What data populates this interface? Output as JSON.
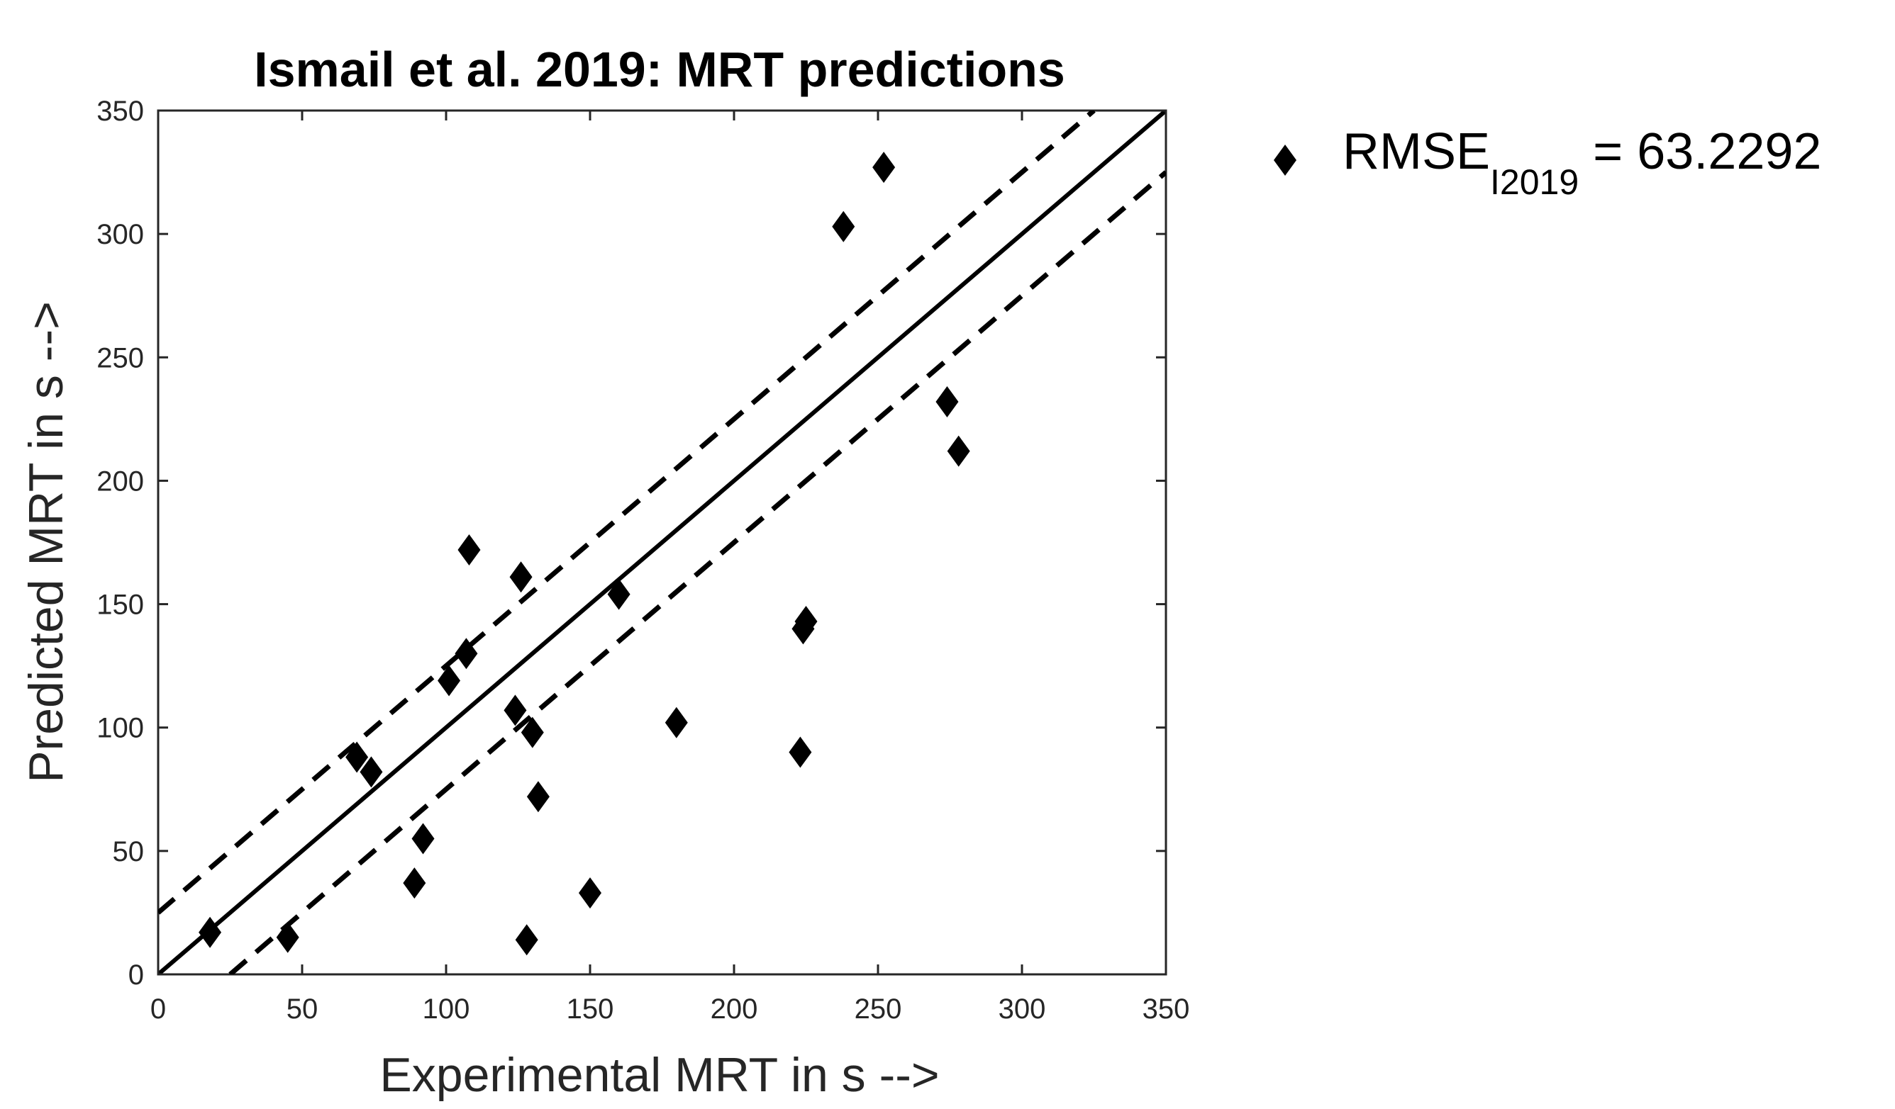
{
  "chart_data": {
    "type": "scatter",
    "title": "Ismail et al. 2019: MRT predictions",
    "xlabel": "Experimental MRT in s -->",
    "ylabel": "Predicted MRT in s -->",
    "xlim": [
      0,
      350
    ],
    "ylim": [
      0,
      350
    ],
    "xticks": [
      "0",
      "50",
      "100",
      "150",
      "200",
      "250",
      "300",
      "350"
    ],
    "yticks": [
      "0",
      "50",
      "100",
      "150",
      "200",
      "250",
      "300",
      "350"
    ],
    "grid": false,
    "legend_position": "outside-top-right",
    "legend": {
      "marker": "diamond",
      "label_main": "RMSE",
      "label_subscript": "I2019",
      "label_value": " = 63.2292"
    },
    "reference_lines": [
      {
        "name": "identity",
        "style": "solid",
        "points": [
          [
            0,
            0
          ],
          [
            350,
            350
          ]
        ]
      },
      {
        "name": "upper-band",
        "style": "dashed",
        "points": [
          [
            0,
            25
          ],
          [
            325,
            350
          ]
        ]
      },
      {
        "name": "lower-band",
        "style": "dashed",
        "points": [
          [
            25,
            0
          ],
          [
            350,
            325
          ]
        ]
      }
    ],
    "series": [
      {
        "name": "RMSE I2019",
        "marker": "diamond",
        "color": "#000000",
        "points": [
          {
            "x": 18,
            "y": 17
          },
          {
            "x": 45,
            "y": 15
          },
          {
            "x": 69,
            "y": 88
          },
          {
            "x": 74,
            "y": 82
          },
          {
            "x": 89,
            "y": 37
          },
          {
            "x": 92,
            "y": 55
          },
          {
            "x": 101,
            "y": 119
          },
          {
            "x": 107,
            "y": 130
          },
          {
            "x": 108,
            "y": 172
          },
          {
            "x": 124,
            "y": 107
          },
          {
            "x": 126,
            "y": 161
          },
          {
            "x": 128,
            "y": 14
          },
          {
            "x": 130,
            "y": 98
          },
          {
            "x": 132,
            "y": 72
          },
          {
            "x": 150,
            "y": 33
          },
          {
            "x": 160,
            "y": 154
          },
          {
            "x": 180,
            "y": 102
          },
          {
            "x": 223,
            "y": 90
          },
          {
            "x": 224,
            "y": 140
          },
          {
            "x": 225,
            "y": 143
          },
          {
            "x": 238,
            "y": 303
          },
          {
            "x": 252,
            "y": 327
          },
          {
            "x": 274,
            "y": 232
          },
          {
            "x": 278,
            "y": 212
          }
        ]
      }
    ]
  }
}
